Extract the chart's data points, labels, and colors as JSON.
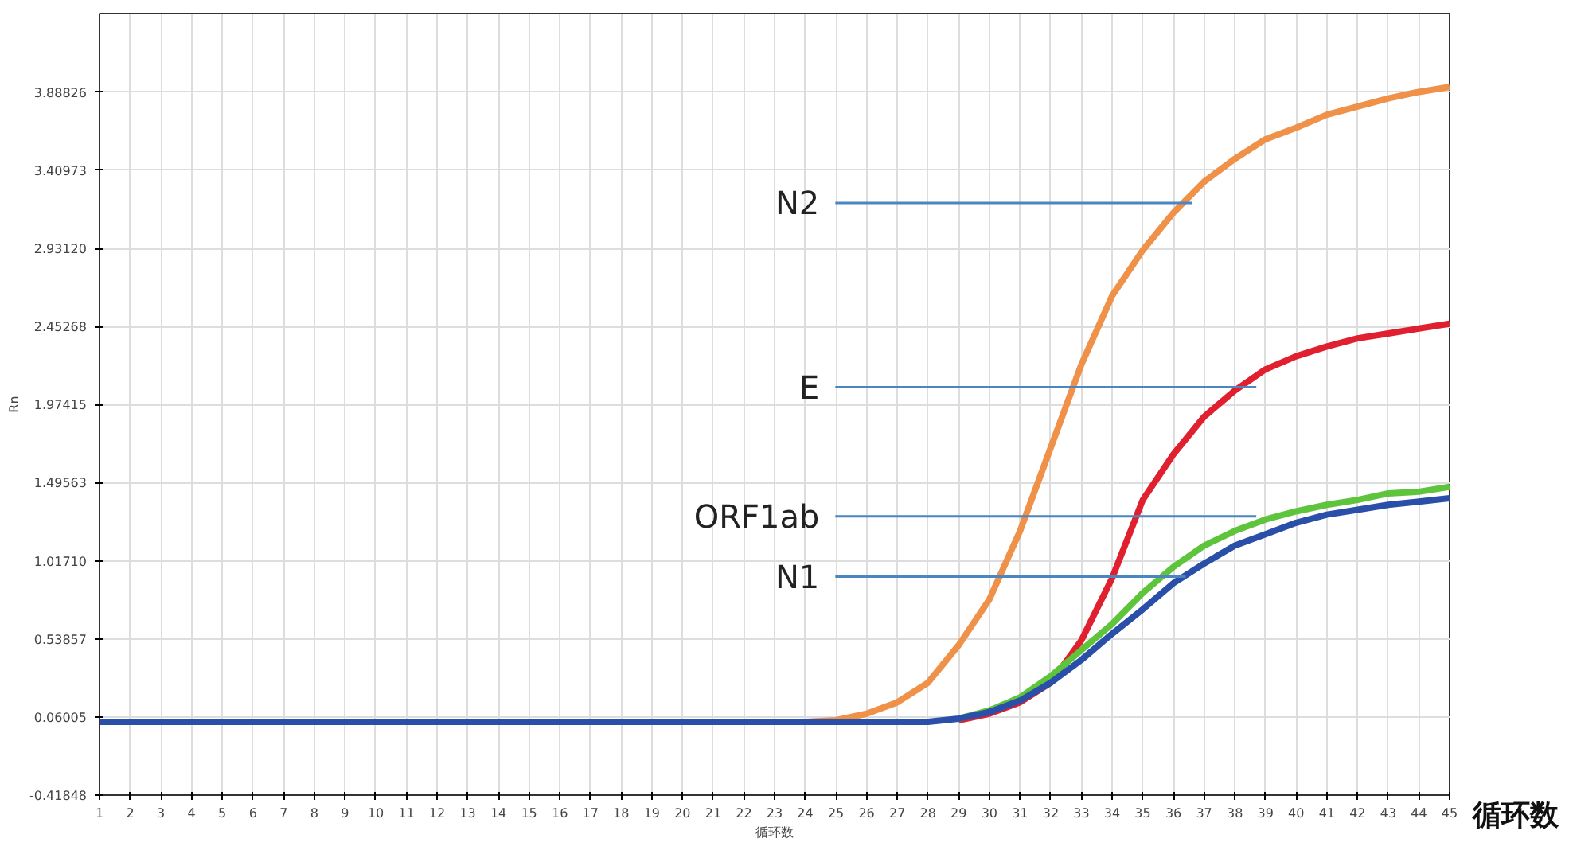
{
  "chart_data": {
    "type": "line",
    "xlabel": "循环数",
    "ylabel": "Rn",
    "x": [
      1,
      5,
      10,
      15,
      20,
      24,
      25,
      26,
      27,
      28,
      29,
      30,
      31,
      32,
      33,
      34,
      35,
      36,
      37,
      38,
      39,
      40,
      41,
      42,
      43,
      44,
      45
    ],
    "series": [
      {
        "color": "#f0914a",
        "values": [
          null,
          null,
          null,
          null,
          null,
          0.03,
          0.04,
          0.08,
          0.15,
          0.27,
          0.5,
          0.78,
          1.2,
          1.71,
          2.22,
          2.64,
          2.92,
          3.15,
          3.34,
          3.48,
          3.6,
          3.67,
          3.75,
          3.8,
          3.85,
          3.89,
          3.92
        ]
      },
      {
        "color": "#e0202e",
        "values": [
          null,
          null,
          null,
          null,
          null,
          null,
          null,
          null,
          null,
          null,
          0.04,
          0.08,
          0.15,
          0.27,
          0.53,
          0.91,
          1.39,
          1.67,
          1.9,
          2.06,
          2.19,
          2.27,
          2.33,
          2.38,
          2.41,
          2.44,
          2.47
        ]
      },
      {
        "color": "#5ec43c",
        "values": [
          null,
          null,
          null,
          null,
          null,
          null,
          null,
          null,
          null,
          null,
          0.05,
          0.1,
          0.18,
          0.31,
          0.47,
          0.63,
          0.82,
          0.98,
          1.11,
          1.2,
          1.27,
          1.32,
          1.36,
          1.39,
          1.43,
          1.44,
          1.47
        ]
      },
      {
        "color": "#2a4fa8",
        "values": [
          0.03,
          0.03,
          0.03,
          0.03,
          0.03,
          0.03,
          0.03,
          0.03,
          0.03,
          0.03,
          0.05,
          0.09,
          0.16,
          0.27,
          0.41,
          0.57,
          0.72,
          0.88,
          1.0,
          1.11,
          1.18,
          1.25,
          1.3,
          1.33,
          1.36,
          1.38,
          1.4
        ]
      }
    ],
    "xlim": [
      1,
      45
    ],
    "xticks": [
      1,
      2,
      3,
      4,
      5,
      6,
      7,
      8,
      9,
      10,
      11,
      12,
      13,
      14,
      15,
      16,
      17,
      18,
      19,
      20,
      21,
      22,
      23,
      24,
      25,
      26,
      27,
      28,
      29,
      30,
      31,
      32,
      33,
      34,
      35,
      36,
      37,
      38,
      39,
      40,
      41,
      42,
      43,
      44,
      45
    ],
    "ylim": [
      -0.41848,
      4.37
    ],
    "yticks": [
      {
        "value": -0.41848,
        "label": "-0.41848"
      },
      {
        "value": 0.06005,
        "label": "0.06005"
      },
      {
        "value": 0.53857,
        "label": "0.53857"
      },
      {
        "value": 1.0171,
        "label": "1.01710"
      },
      {
        "value": 1.49563,
        "label": "1.49563"
      },
      {
        "value": 1.97415,
        "label": "1.97415"
      },
      {
        "value": 2.45268,
        "label": "2.45268"
      },
      {
        "value": 2.9312,
        "label": "2.93120"
      },
      {
        "value": 3.40973,
        "label": "3.40973"
      },
      {
        "value": 3.88826,
        "label": "3.88826"
      }
    ],
    "grid": true,
    "marker": "none",
    "line_style": "solid",
    "annotations": [
      {
        "text": "N2",
        "x": 36.6,
        "y": 3.21
      },
      {
        "text": "E",
        "x": 38.7,
        "y": 2.08
      },
      {
        "text": "ORF1ab",
        "x": 38.7,
        "y": 1.29
      },
      {
        "text": "N1",
        "x": 36.4,
        "y": 0.92
      },
      "循环数"
    ]
  }
}
